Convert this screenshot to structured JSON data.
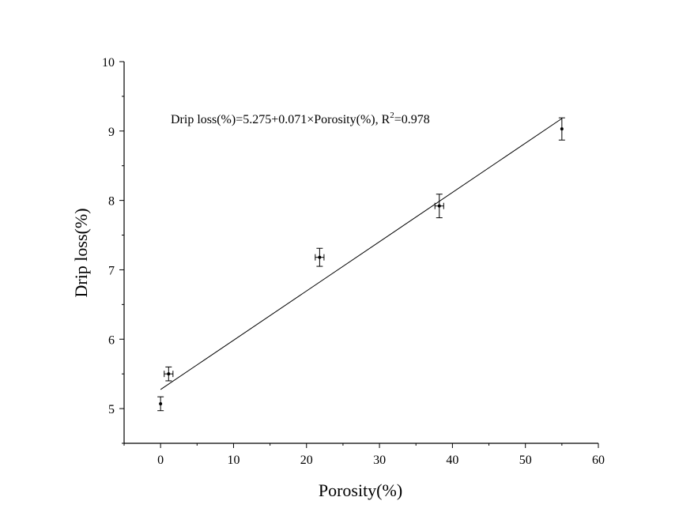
{
  "chart_data": {
    "type": "scatter",
    "xlabel": "Porosity(%)",
    "ylabel": "Drip loss(%)",
    "xlim": [
      -5,
      60
    ],
    "ylim": [
      4.5,
      10
    ],
    "x_ticks": [
      0,
      10,
      20,
      30,
      40,
      50,
      60
    ],
    "y_ticks": [
      5,
      6,
      7,
      8,
      9,
      10
    ],
    "grid": false,
    "points": [
      {
        "x": 0,
        "y": 5.07,
        "y_err": 0.1,
        "x_err": 0
      },
      {
        "x": 1.1,
        "y": 5.5,
        "y_err": 0.1,
        "x_err": 0.6
      },
      {
        "x": 21.8,
        "y": 7.18,
        "y_err": 0.13,
        "x_err": 0.6
      },
      {
        "x": 38.2,
        "y": 7.92,
        "y_err": 0.17,
        "x_err": 0.6
      },
      {
        "x": 55.0,
        "y": 9.03,
        "y_err": 0.16,
        "x_err": 0
      }
    ],
    "fit": {
      "intercept": 5.275,
      "slope": 0.071,
      "x_range": [
        0,
        55
      ]
    },
    "annotation": {
      "prefix": "Drip loss(%)=5.275+0.071×Porosity(%), R",
      "superscript": "2",
      "suffix": "=0.978"
    }
  }
}
